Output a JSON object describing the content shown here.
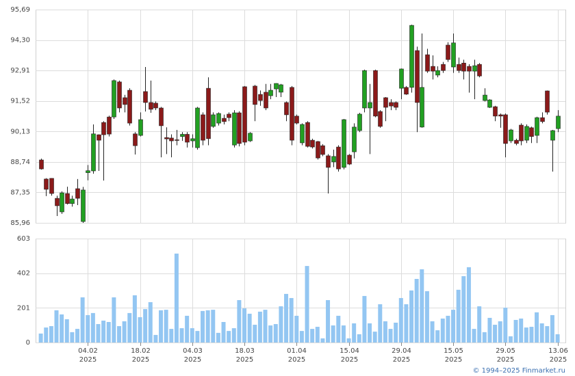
{
  "chart_data": [
    {
      "type": "candlestick",
      "xlim": [
        -1,
        100.5
      ],
      "ylim": [
        85.96,
        95.69
      ],
      "yticks": [
        {
          "value": 85.96,
          "label": "85,96"
        },
        {
          "value": 87.35,
          "label": "87,35"
        },
        {
          "value": 88.74,
          "label": "88,74"
        },
        {
          "value": 90.13,
          "label": "90,13"
        },
        {
          "value": 91.52,
          "label": "91,52"
        },
        {
          "value": 92.91,
          "label": "92,91"
        },
        {
          "value": 94.3,
          "label": "94,30"
        },
        {
          "value": 95.69,
          "label": "95,69"
        }
      ],
      "grid": true,
      "up_color": "#22a022",
      "down_color": "#8b1a1a",
      "open": [
        88.83,
        87.96,
        87.99,
        87.08,
        86.46,
        87.3,
        86.84,
        87.52,
        86.02,
        88.25,
        88.33,
        89.98,
        90.54,
        90.79,
        90.79,
        92.39,
        91.67,
        92.01,
        90.02,
        89.95,
        91.95,
        91.45,
        91.42,
        91.2,
        89.85,
        89.83,
        89.75,
        89.9,
        90.0,
        89.7,
        89.39,
        90.89,
        92.1,
        90.36,
        90.51,
        90.73,
        90.92,
        89.51,
        90.98,
        92.17,
        89.7,
        92.2,
        91.82,
        91.92,
        91.76,
        92.07,
        91.92,
        91.45,
        92.14,
        90.83,
        89.61,
        90.54,
        89.73,
        89.67,
        89.48,
        89.02,
        88.74,
        89.42,
        88.49,
        89.05,
        89.2,
        90.17,
        91.2,
        91.2,
        92.91,
        91.04,
        91.67,
        91.45,
        91.45,
        92.1,
        92.14,
        92.14,
        93.82,
        90.33,
        93.63,
        93.1,
        92.7,
        93.19,
        94.07,
        93.07,
        93.19,
        93.25,
        93.1,
        92.88,
        93.19,
        91.54,
        91.23,
        91.26,
        90.89,
        90.89,
        89.7,
        89.73,
        90.42,
        89.73,
        90.3,
        89.95,
        90.76,
        91.98,
        89.73,
        90.26
      ],
      "high": [
        88.89,
        88.0,
        88.0,
        87.2,
        87.4,
        87.61,
        87.2,
        87.96,
        87.6,
        88.6,
        90.45,
        90.0,
        90.6,
        90.85,
        92.5,
        92.45,
        91.8,
        92.1,
        90.1,
        91.0,
        93.07,
        92.45,
        91.5,
        91.25,
        90.32,
        90.0,
        90.2,
        90.1,
        90.1,
        90.0,
        91.25,
        91.0,
        92.6,
        91.0,
        91.0,
        90.9,
        91.0,
        91.1,
        91.05,
        92.2,
        90.1,
        92.25,
        92.0,
        92.3,
        92.3,
        92.33,
        92.3,
        91.5,
        92.2,
        90.9,
        90.5,
        90.6,
        89.8,
        89.7,
        89.55,
        89.1,
        89.3,
        89.5,
        90.7,
        89.1,
        90.5,
        90.98,
        92.95,
        92.3,
        92.95,
        91.1,
        91.7,
        91.6,
        91.5,
        93.0,
        92.2,
        95.0,
        94.0,
        94.6,
        93.9,
        93.6,
        93.1,
        93.3,
        94.2,
        94.6,
        93.5,
        93.4,
        93.2,
        93.4,
        93.25,
        92.1,
        91.6,
        91.3,
        90.95,
        90.95,
        90.25,
        89.8,
        90.5,
        90.45,
        90.35,
        90.8,
        91.0,
        92.0,
        90.2,
        91.1
      ],
      "low": [
        88.39,
        87.18,
        87.2,
        86.27,
        86.37,
        86.8,
        86.7,
        86.77,
        85.96,
        87.9,
        88.2,
        88.33,
        87.89,
        89.9,
        90.7,
        91.0,
        91.0,
        90.4,
        89.08,
        89.9,
        91.04,
        90.98,
        91.1,
        88.95,
        89.1,
        88.95,
        89.5,
        89.7,
        89.4,
        89.4,
        89.3,
        89.5,
        89.5,
        90.3,
        90.4,
        90.45,
        90.6,
        89.4,
        89.45,
        89.5,
        89.65,
        90.6,
        91.3,
        91.1,
        91.6,
        91.7,
        91.7,
        90.6,
        89.5,
        90.45,
        89.5,
        89.4,
        89.35,
        88.85,
        89.0,
        87.3,
        88.5,
        88.3,
        88.4,
        88.6,
        88.9,
        90.1,
        91.0,
        89.1,
        90.78,
        90.3,
        90.6,
        91.1,
        91.1,
        91.6,
        91.8,
        91.9,
        90.1,
        90.3,
        92.8,
        92.5,
        92.6,
        92.8,
        93.3,
        92.8,
        92.8,
        92.5,
        91.9,
        91.6,
        92.6,
        91.5,
        91.2,
        90.6,
        90.3,
        88.95,
        89.6,
        89.5,
        89.5,
        89.6,
        89.6,
        89.6,
        90.5,
        90.9,
        88.3,
        90.1
      ],
      "close": [
        88.42,
        87.49,
        87.3,
        86.74,
        87.33,
        86.84,
        87.05,
        87.08,
        87.46,
        88.34,
        90.02,
        89.73,
        89.98,
        90.01,
        92.45,
        91.2,
        91.36,
        90.51,
        89.48,
        90.67,
        91.45,
        91.14,
        91.2,
        90.39,
        89.79,
        89.7,
        89.72,
        90.0,
        89.64,
        89.8,
        91.2,
        89.73,
        89.8,
        90.89,
        90.95,
        90.58,
        90.76,
        90.98,
        89.58,
        89.64,
        90.05,
        91.36,
        91.54,
        91.2,
        92.01,
        92.32,
        92.26,
        90.89,
        89.73,
        90.51,
        90.45,
        89.45,
        89.42,
        88.92,
        89.08,
        88.49,
        88.99,
        88.42,
        90.67,
        88.64,
        90.33,
        90.92,
        92.91,
        91.45,
        90.83,
        90.36,
        91.23,
        91.29,
        91.23,
        92.98,
        91.83,
        94.97,
        91.45,
        92.14,
        92.88,
        92.88,
        92.91,
        92.91,
        93.41,
        94.17,
        92.91,
        92.88,
        92.88,
        93.13,
        92.66,
        91.79,
        91.57,
        90.83,
        90.83,
        89.58,
        90.2,
        89.58,
        89.7,
        90.36,
        89.9,
        90.76,
        90.58,
        91.01,
        90.17,
        90.83
      ]
    },
    {
      "type": "bar",
      "xlim": [
        -1,
        100.5
      ],
      "ylim": [
        0,
        603
      ],
      "yticks": [
        0,
        201,
        402,
        603
      ],
      "grid": true,
      "color": "#93c6f2",
      "xticks": [
        {
          "value": 9,
          "label": "04.02",
          "year": "2025"
        },
        {
          "value": 19,
          "label": "18.02",
          "year": "2025"
        },
        {
          "value": 29,
          "label": "04.03",
          "year": "2025"
        },
        {
          "value": 39,
          "label": "18.03",
          "year": "2025"
        },
        {
          "value": 49,
          "label": "01.04",
          "year": "2025"
        },
        {
          "value": 59,
          "label": "15.04",
          "year": "2025"
        },
        {
          "value": 69,
          "label": "29.04",
          "year": "2025"
        },
        {
          "value": 79,
          "label": "15.05",
          "year": "2025"
        },
        {
          "value": 89,
          "label": "29.05",
          "year": "2025"
        },
        {
          "value": 99,
          "label": "13.06",
          "year": "2025"
        }
      ],
      "values": [
        52,
        87,
        95,
        187,
        163,
        135,
        60,
        79,
        262,
        159,
        171,
        107,
        127,
        119,
        262,
        95,
        123,
        171,
        274,
        147,
        194,
        234,
        44,
        187,
        190,
        79,
        516,
        83,
        155,
        83,
        67,
        183,
        187,
        190,
        56,
        119,
        67,
        83,
        246,
        198,
        167,
        103,
        179,
        190,
        99,
        107,
        210,
        282,
        258,
        155,
        67,
        444,
        79,
        91,
        24,
        246,
        99,
        155,
        99,
        24,
        111,
        48,
        270,
        111,
        63,
        222,
        123,
        79,
        115,
        258,
        222,
        302,
        369,
        425,
        298,
        123,
        71,
        139,
        155,
        190,
        306,
        385,
        437,
        79,
        210,
        60,
        143,
        103,
        123,
        202,
        36,
        131,
        139,
        87,
        91,
        175,
        111,
        95,
        159,
        48
      ]
    }
  ],
  "footer": "© 1994–2025 Finmarket.ru"
}
